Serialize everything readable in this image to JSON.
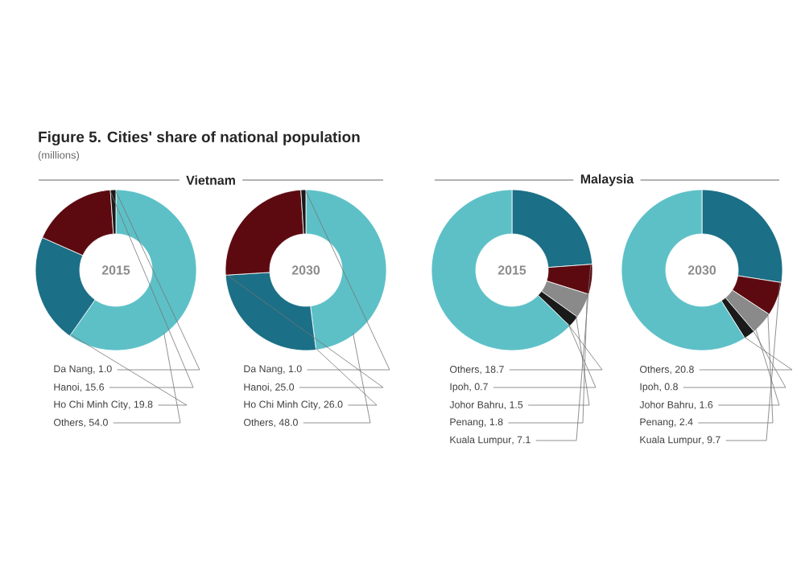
{
  "chart_data": [
    {
      "type": "other",
      "title": "Figure 5. Cities' share of national population",
      "subtitle": "(millions)",
      "annotations": [
        "Vietnam",
        "Malaysia"
      ]
    },
    {
      "type": "donut",
      "title": "2015",
      "categories": [
        "Da Nang",
        "Hanoi",
        "Ho Chi Minh City",
        "Others"
      ],
      "values": [
        1.0,
        15.6,
        19.8,
        54.0
      ],
      "value_labels": [
        ", 1.0",
        ", 15.6",
        ", 19.8",
        ", 54.0"
      ],
      "colors": [
        "#1a1a1a",
        "#5c0a10",
        "#1b6f86",
        "#5dc0c7"
      ]
    },
    {
      "type": "donut",
      "title": "2030",
      "categories": [
        "Da Nang",
        "Hanoi",
        "Ho Chi Minh City",
        "Others"
      ],
      "values": [
        1.0,
        25.0,
        26.0,
        48.0
      ],
      "value_labels": [
        ", 1.0",
        ", 25.0",
        ", 26.0",
        ", 48.0"
      ],
      "colors": [
        "#1a1a1a",
        "#5c0a10",
        "#1b6f86",
        "#5dc0c7"
      ]
    },
    {
      "type": "donut",
      "title": "2015",
      "categories": [
        "Others",
        "Ipoh",
        "Johor Bahru",
        "Penang",
        "Kuala Lumpur"
      ],
      "values": [
        18.7,
        0.7,
        1.5,
        1.8,
        7.1
      ],
      "value_labels": [
        ", 18.7",
        ", 0.7",
        ", 1.5",
        ", 1.8",
        ", 7.1"
      ],
      "colors": [
        "#5dc0c7",
        "#1a1a1a",
        "#8a8a8a",
        "#5c0a10",
        "#1b6f86"
      ]
    },
    {
      "type": "donut",
      "title": "2030",
      "categories": [
        "Others",
        "Ipoh",
        "Johor Bahru",
        "Penang",
        "Kuala Lumpur"
      ],
      "values": [
        20.8,
        0.8,
        1.6,
        2.4,
        9.7
      ],
      "value_labels": [
        ", 20.8",
        ", 0.8",
        ", 1.6",
        ", 2.4",
        ", 9.7"
      ],
      "colors": [
        "#5dc0c7",
        "#1a1a1a",
        "#8a8a8a",
        "#5c0a10",
        "#1b6f86"
      ]
    }
  ]
}
